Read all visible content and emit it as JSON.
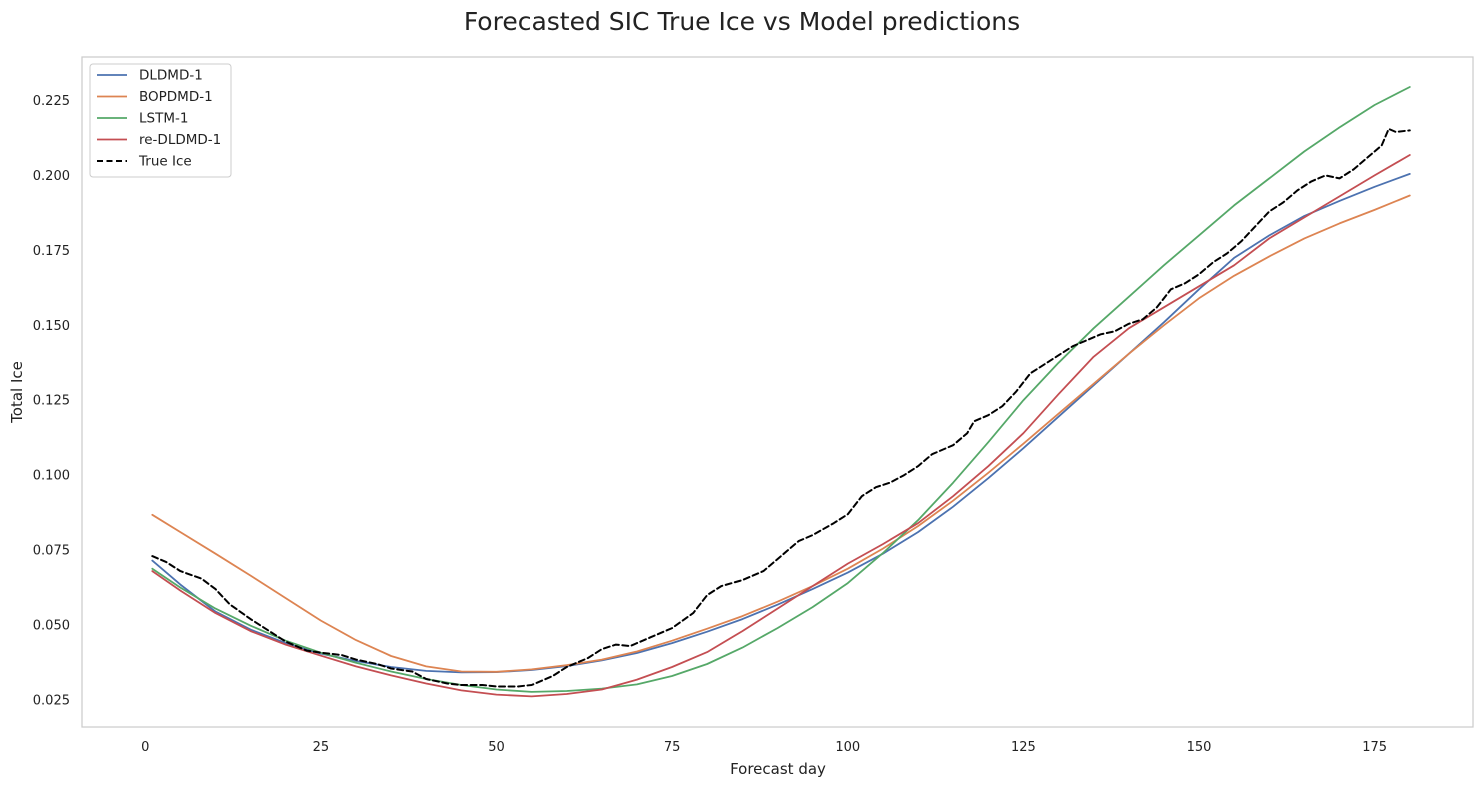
{
  "chart_data": {
    "type": "line",
    "title": "Forecasted SIC True Ice vs Model predictions",
    "xlabel": "Forecast day",
    "ylabel": "Total Ice",
    "xlim": [
      -9,
      189
    ],
    "ylim": [
      0.016,
      0.2395
    ],
    "xticks": [
      0,
      25,
      50,
      75,
      100,
      125,
      150,
      175
    ],
    "yticks": [
      0.025,
      0.05,
      0.075,
      0.1,
      0.125,
      0.15,
      0.175,
      0.2,
      0.225
    ],
    "ytick_labels": [
      "0.025",
      "0.050",
      "0.075",
      "0.100",
      "0.125",
      "0.150",
      "0.175",
      "0.200",
      "0.225"
    ],
    "grid": false,
    "legend_position": "top-left",
    "series": [
      {
        "name": "DLDMD-1",
        "color": "#4c72b0",
        "style": "solid",
        "points": [
          [
            1,
            0.0715
          ],
          [
            5,
            0.0635
          ],
          [
            10,
            0.0545
          ],
          [
            15,
            0.0485
          ],
          [
            20,
            0.044
          ],
          [
            25,
            0.0405
          ],
          [
            30,
            0.038
          ],
          [
            35,
            0.036
          ],
          [
            40,
            0.0347
          ],
          [
            45,
            0.0342
          ],
          [
            50,
            0.0343
          ],
          [
            55,
            0.035
          ],
          [
            60,
            0.0363
          ],
          [
            65,
            0.0382
          ],
          [
            70,
            0.0407
          ],
          [
            75,
            0.044
          ],
          [
            80,
            0.0478
          ],
          [
            85,
            0.052
          ],
          [
            90,
            0.0568
          ],
          [
            95,
            0.062
          ],
          [
            100,
            0.0675
          ],
          [
            105,
            0.0738
          ],
          [
            110,
            0.081
          ],
          [
            115,
            0.0895
          ],
          [
            120,
            0.099
          ],
          [
            125,
            0.109
          ],
          [
            130,
            0.1195
          ],
          [
            135,
            0.13
          ],
          [
            140,
            0.1405
          ],
          [
            145,
            0.151
          ],
          [
            150,
            0.162
          ],
          [
            155,
            0.1725
          ],
          [
            160,
            0.18
          ],
          [
            165,
            0.1865
          ],
          [
            170,
            0.1915
          ],
          [
            175,
            0.1962
          ],
          [
            180,
            0.2005
          ]
        ]
      },
      {
        "name": "BOPDMD-1",
        "color": "#dd8452",
        "style": "solid",
        "points": [
          [
            1,
            0.0868
          ],
          [
            5,
            0.081
          ],
          [
            10,
            0.0738
          ],
          [
            15,
            0.0665
          ],
          [
            20,
            0.059
          ],
          [
            25,
            0.0515
          ],
          [
            30,
            0.045
          ],
          [
            35,
            0.0397
          ],
          [
            40,
            0.0362
          ],
          [
            45,
            0.0345
          ],
          [
            50,
            0.0344
          ],
          [
            55,
            0.0352
          ],
          [
            60,
            0.0366
          ],
          [
            65,
            0.0385
          ],
          [
            70,
            0.0412
          ],
          [
            75,
            0.0448
          ],
          [
            80,
            0.0488
          ],
          [
            85,
            0.053
          ],
          [
            90,
            0.0578
          ],
          [
            95,
            0.063
          ],
          [
            100,
            0.0688
          ],
          [
            105,
            0.0755
          ],
          [
            110,
            0.083
          ],
          [
            115,
            0.0915
          ],
          [
            120,
            0.1008
          ],
          [
            125,
            0.1105
          ],
          [
            130,
            0.1205
          ],
          [
            135,
            0.1305
          ],
          [
            140,
            0.1405
          ],
          [
            145,
            0.15
          ],
          [
            150,
            0.159
          ],
          [
            155,
            0.1665
          ],
          [
            160,
            0.173
          ],
          [
            165,
            0.179
          ],
          [
            170,
            0.184
          ],
          [
            175,
            0.1885
          ],
          [
            180,
            0.1933
          ]
        ]
      },
      {
        "name": "LSTM-1",
        "color": "#55a868",
        "style": "solid",
        "points": [
          [
            1,
            0.0688
          ],
          [
            5,
            0.0625
          ],
          [
            10,
            0.0555
          ],
          [
            15,
            0.0498
          ],
          [
            20,
            0.0448
          ],
          [
            25,
            0.0408
          ],
          [
            30,
            0.0374
          ],
          [
            35,
            0.0345
          ],
          [
            40,
            0.032
          ],
          [
            45,
            0.03
          ],
          [
            50,
            0.0285
          ],
          [
            55,
            0.0277
          ],
          [
            60,
            0.028
          ],
          [
            65,
            0.0288
          ],
          [
            70,
            0.0302
          ],
          [
            75,
            0.033
          ],
          [
            80,
            0.037
          ],
          [
            85,
            0.0425
          ],
          [
            90,
            0.049
          ],
          [
            95,
            0.056
          ],
          [
            100,
            0.064
          ],
          [
            105,
            0.074
          ],
          [
            110,
            0.085
          ],
          [
            115,
            0.0975
          ],
          [
            120,
            0.111
          ],
          [
            125,
            0.125
          ],
          [
            130,
            0.1375
          ],
          [
            135,
            0.149
          ],
          [
            140,
            0.1595
          ],
          [
            145,
            0.17
          ],
          [
            150,
            0.18
          ],
          [
            155,
            0.19
          ],
          [
            160,
            0.199
          ],
          [
            165,
            0.208
          ],
          [
            170,
            0.216
          ],
          [
            175,
            0.2235
          ],
          [
            180,
            0.2295
          ]
        ]
      },
      {
        "name": "re-DLDMD-1",
        "color": "#c44e52",
        "style": "solid",
        "points": [
          [
            1,
            0.068
          ],
          [
            5,
            0.0615
          ],
          [
            10,
            0.054
          ],
          [
            15,
            0.048
          ],
          [
            20,
            0.0435
          ],
          [
            25,
            0.0398
          ],
          [
            30,
            0.0362
          ],
          [
            35,
            0.0332
          ],
          [
            40,
            0.0305
          ],
          [
            45,
            0.0282
          ],
          [
            50,
            0.0268
          ],
          [
            55,
            0.0262
          ],
          [
            60,
            0.027
          ],
          [
            65,
            0.0285
          ],
          [
            70,
            0.0318
          ],
          [
            75,
            0.036
          ],
          [
            80,
            0.041
          ],
          [
            85,
            0.048
          ],
          [
            90,
            0.0555
          ],
          [
            95,
            0.063
          ],
          [
            100,
            0.0705
          ],
          [
            105,
            0.077
          ],
          [
            110,
            0.084
          ],
          [
            115,
            0.093
          ],
          [
            120,
            0.103
          ],
          [
            125,
            0.114
          ],
          [
            130,
            0.127
          ],
          [
            135,
            0.1395
          ],
          [
            140,
            0.149
          ],
          [
            145,
            0.156
          ],
          [
            150,
            0.163
          ],
          [
            155,
            0.17
          ],
          [
            160,
            0.179
          ],
          [
            165,
            0.186
          ],
          [
            170,
            0.193
          ],
          [
            175,
            0.2
          ],
          [
            180,
            0.2068
          ]
        ]
      },
      {
        "name": "True Ice",
        "color": "#000000",
        "style": "dashed",
        "points": [
          [
            1,
            0.073
          ],
          [
            3,
            0.071
          ],
          [
            5,
            0.068
          ],
          [
            8,
            0.0655
          ],
          [
            10,
            0.062
          ],
          [
            12,
            0.057
          ],
          [
            15,
            0.052
          ],
          [
            18,
            0.0475
          ],
          [
            20,
            0.0445
          ],
          [
            23,
            0.0415
          ],
          [
            25,
            0.0408
          ],
          [
            28,
            0.04
          ],
          [
            30,
            0.0385
          ],
          [
            33,
            0.037
          ],
          [
            35,
            0.0355
          ],
          [
            38,
            0.0345
          ],
          [
            40,
            0.032
          ],
          [
            43,
            0.0305
          ],
          [
            45,
            0.03
          ],
          [
            48,
            0.03
          ],
          [
            50,
            0.0295
          ],
          [
            53,
            0.0295
          ],
          [
            55,
            0.03
          ],
          [
            58,
            0.033
          ],
          [
            60,
            0.036
          ],
          [
            63,
            0.039
          ],
          [
            65,
            0.042
          ],
          [
            67,
            0.0435
          ],
          [
            69,
            0.043
          ],
          [
            70,
            0.044
          ],
          [
            72,
            0.046
          ],
          [
            75,
            0.049
          ],
          [
            78,
            0.054
          ],
          [
            80,
            0.06
          ],
          [
            82,
            0.063
          ],
          [
            85,
            0.065
          ],
          [
            88,
            0.068
          ],
          [
            90,
            0.072
          ],
          [
            93,
            0.078
          ],
          [
            95,
            0.08
          ],
          [
            98,
            0.084
          ],
          [
            100,
            0.087
          ],
          [
            102,
            0.093
          ],
          [
            104,
            0.096
          ],
          [
            106,
            0.0975
          ],
          [
            108,
            0.1
          ],
          [
            110,
            0.103
          ],
          [
            112,
            0.107
          ],
          [
            115,
            0.11
          ],
          [
            117,
            0.114
          ],
          [
            118,
            0.118
          ],
          [
            120,
            0.12
          ],
          [
            122,
            0.123
          ],
          [
            124,
            0.128
          ],
          [
            126,
            0.134
          ],
          [
            128,
            0.137
          ],
          [
            130,
            0.14
          ],
          [
            132,
            0.143
          ],
          [
            134,
            0.145
          ],
          [
            136,
            0.147
          ],
          [
            138,
            0.148
          ],
          [
            140,
            0.1505
          ],
          [
            142,
            0.152
          ],
          [
            144,
            0.156
          ],
          [
            146,
            0.162
          ],
          [
            148,
            0.164
          ],
          [
            150,
            0.167
          ],
          [
            152,
            0.171
          ],
          [
            154,
            0.174
          ],
          [
            156,
            0.178
          ],
          [
            158,
            0.183
          ],
          [
            160,
            0.188
          ],
          [
            162,
            0.191
          ],
          [
            164,
            0.195
          ],
          [
            166,
            0.198
          ],
          [
            168,
            0.2
          ],
          [
            170,
            0.199
          ],
          [
            172,
            0.202
          ],
          [
            174,
            0.206
          ],
          [
            176,
            0.21
          ],
          [
            177,
            0.2155
          ],
          [
            178,
            0.2145
          ],
          [
            180,
            0.215
          ]
        ]
      }
    ]
  }
}
